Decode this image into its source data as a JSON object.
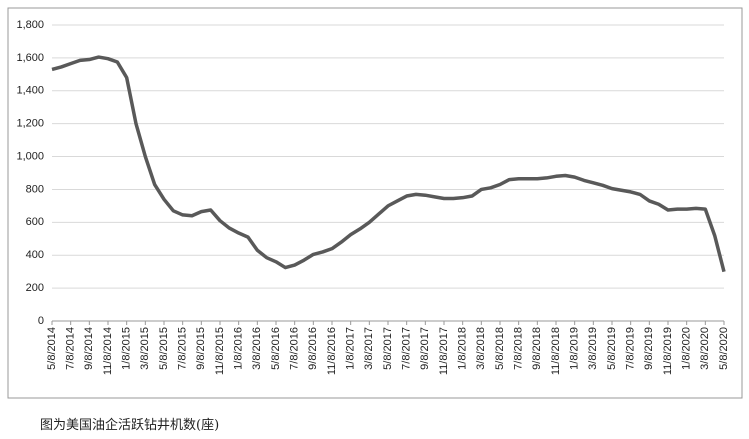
{
  "chart_data": {
    "type": "line",
    "caption": "图为美国油企活跃钻井机数(座)",
    "categories": [
      "5/8/2014",
      null,
      "7/8/2014",
      null,
      "9/8/2014",
      null,
      "11/8/2014",
      null,
      "1/8/2015",
      null,
      "3/8/2015",
      null,
      "5/8/2015",
      null,
      "7/8/2015",
      null,
      "9/8/2015",
      null,
      "11/8/2015",
      null,
      "1/8/2016",
      null,
      "3/8/2016",
      null,
      "5/8/2016",
      null,
      "7/8/2016",
      null,
      "9/8/2016",
      null,
      "11/8/2016",
      null,
      "1/8/2017",
      null,
      "3/8/2017",
      null,
      "5/8/2017",
      null,
      "7/8/2017",
      null,
      "9/8/2017",
      null,
      "11/8/2017",
      null,
      "1/8/2018",
      null,
      "3/8/2018",
      null,
      "5/8/2018",
      null,
      "7/8/2018",
      null,
      "9/8/2018",
      null,
      "11/8/2018",
      null,
      "1/8/2019",
      null,
      "3/8/2019",
      null,
      "5/8/2019",
      null,
      "7/8/2019",
      null,
      "9/8/2019",
      null,
      "11/8/2019",
      null,
      "1/8/2020",
      null,
      "3/8/2020",
      null,
      "5/8/2020"
    ],
    "values": [
      1530,
      1545,
      1565,
      1585,
      1590,
      1605,
      1595,
      1575,
      1480,
      1200,
      1000,
      830,
      740,
      670,
      645,
      640,
      665,
      675,
      610,
      565,
      535,
      510,
      430,
      385,
      360,
      325,
      340,
      370,
      405,
      420,
      440,
      480,
      525,
      560,
      600,
      650,
      700,
      730,
      760,
      770,
      765,
      755,
      745,
      745,
      750,
      760,
      800,
      810,
      830,
      860,
      865,
      865,
      865,
      870,
      880,
      885,
      875,
      855,
      840,
      825,
      805,
      795,
      785,
      770,
      730,
      710,
      675,
      680,
      680,
      685,
      680,
      520,
      300
    ],
    "color": "#595959",
    "ylim": [
      0,
      1800
    ],
    "yticks": [
      0,
      200,
      400,
      600,
      800,
      {
        "value": 1000,
        "label": "1,000"
      },
      {
        "value": 1200,
        "label": "1,200"
      },
      {
        "value": 1400,
        "label": "1,400"
      },
      {
        "value": 1600,
        "label": "1,600"
      },
      {
        "value": 1800,
        "label": "1,800"
      }
    ],
    "grid": true
  }
}
